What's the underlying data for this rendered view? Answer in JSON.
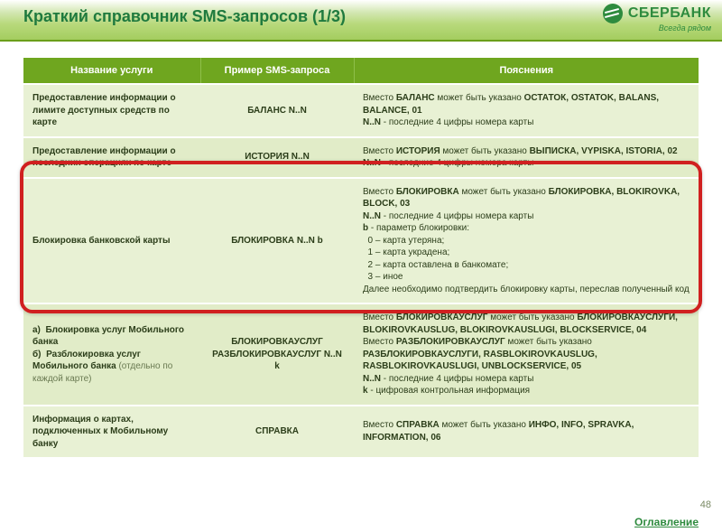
{
  "header": {
    "title": "Краткий справочник SMS-запросов (1/3)",
    "logo_text": "СБЕРБАНК",
    "logo_sub": "Всегда рядом"
  },
  "columns": [
    "Название услуги",
    "Пример SMS-запроса",
    "Пояснения"
  ],
  "rows": [
    {
      "service": "Предоставление информации о лимите доступных средств по карте",
      "example": "БАЛАНС N..N",
      "explain": "Вместо <b>БАЛАНС</b> может быть указано <b>ОСТАТОК, OSTATOK, BALANS, BALANCE, 01</b><br><b>N..N</b> - последние 4 цифры номера карты"
    },
    {
      "service": "Предоставление информации о последних операциях по карте",
      "example": "ИСТОРИЯ N..N",
      "explain": "Вместо <b>ИСТОРИЯ</b> может быть указано <b>ВЫПИСКА, VYPISKA, ISTORIA, 02</b><br><b>N..N</b> - последние 4 цифры номера карты"
    },
    {
      "service": "Блокировка банковской карты",
      "example": "БЛОКИРОВКА N..N b",
      "explain": "Вместо <b>БЛОКИРОВКА</b> может быть указано <b>БЛОКИРОВКА, BLOKIROVKA, BLOCK, 03</b><br><b>N..N</b> - последние 4 цифры номера карты<br><b>b</b> - параметр блокировки:<br>&nbsp;&nbsp;0 – карта утеряна;<br>&nbsp;&nbsp;1 – карта украдена;<br>&nbsp;&nbsp;2 – карта оставлена в банкомате;<br>&nbsp;&nbsp;3 – иное<br>Далее необходимо подтвердить блокировку карты, переслав полученный код"
    },
    {
      "service": "а)&nbsp;&nbsp;Блокировка услуг Мобильного банка<br>б)&nbsp;&nbsp;Разблокировка услуг Мобильного банка <span class=\"muted\">(отдельно по каждой карте)</span>",
      "example": "БЛОКИРОВКАУСЛУГ<br>РАЗБЛОКИРОВКАУСЛУГ N..N k",
      "explain": "Вместо <b>БЛОКИРОВКАУСЛУГ</b> может быть указано <b>БЛОКИРОВКАУСЛУГИ, BLOKIROVKAUSLUG, BLOKIROVKAUSLUGI, BLOCKSERVICE, 04</b><br>Вместо <b>РАЗБЛОКИРОВКАУСЛУГ</b> может быть указано <b>РАЗБЛОКИРОВКАУСЛУГИ, RASBLOKIROVKAUSLUG, RASBLOKIROVKAUSLUGI, UNBLOCKSERVICE, 05</b><br><b>N..N</b> - последние 4 цифры номера карты<br><b>k</b> - цифровая контрольная информация"
    },
    {
      "service": "Информация о картах, подключенных к Мобильному банку",
      "example": "СПРАВКА",
      "explain": "Вместо <b>СПРАВКА</b> может быть указано <b>ИНФО, INFO, SPRAVKA, INFORMATION, 06</b>"
    }
  ],
  "footer": {
    "page_number": "48",
    "toc_label": "Оглавление"
  },
  "highlight_row_index": 2,
  "colors": {
    "brand_green": "#2e8b3e",
    "header_green": "#6fa61f",
    "row_bg": "#e8f1d4",
    "row_bg_alt": "#e1ecc8",
    "highlight_border": "#d02020"
  }
}
